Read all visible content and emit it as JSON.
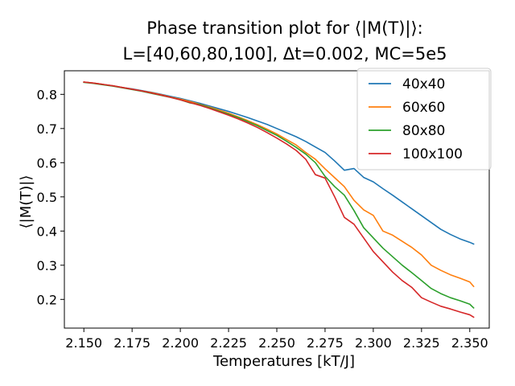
{
  "chart_data": {
    "type": "line",
    "title_line1": "Phase transition plot for ⟨|M(T)|⟩:",
    "title_line2": "L=[40,60,80,100], Δt=0.002, MC=5e5",
    "xlabel": "Temperatures [kT/J]",
    "ylabel": "⟨|M(T)|⟩",
    "xlim": [
      2.1399,
      2.3601
    ],
    "ylim": [
      0.116,
      0.869
    ],
    "xticks": [
      2.15,
      2.175,
      2.2,
      2.225,
      2.25,
      2.275,
      2.3,
      2.325,
      2.35
    ],
    "xtick_labels": [
      "2.150",
      "2.175",
      "2.200",
      "2.225",
      "2.250",
      "2.275",
      "2.300",
      "2.325",
      "2.350"
    ],
    "yticks": [
      0.2,
      0.3,
      0.4,
      0.5,
      0.6,
      0.7,
      0.8
    ],
    "ytick_labels": [
      "0.2",
      "0.3",
      "0.4",
      "0.5",
      "0.6",
      "0.7",
      "0.8"
    ],
    "grid": false,
    "legend_position": "top-right",
    "series": [
      {
        "name": "40x40",
        "color": "#1f77b4",
        "points": [
          [
            2.15,
            0.836
          ],
          [
            2.155,
            0.833
          ],
          [
            2.16,
            0.829
          ],
          [
            2.165,
            0.825
          ],
          [
            2.17,
            0.82
          ],
          [
            2.175,
            0.816
          ],
          [
            2.18,
            0.811
          ],
          [
            2.185,
            0.806
          ],
          [
            2.19,
            0.8
          ],
          [
            2.195,
            0.794
          ],
          [
            2.2,
            0.788
          ],
          [
            2.205,
            0.781
          ],
          [
            2.21,
            0.774
          ],
          [
            2.215,
            0.766
          ],
          [
            2.22,
            0.758
          ],
          [
            2.225,
            0.75
          ],
          [
            2.23,
            0.741
          ],
          [
            2.235,
            0.732
          ],
          [
            2.24,
            0.722
          ],
          [
            2.245,
            0.712
          ],
          [
            2.25,
            0.7
          ],
          [
            2.255,
            0.688
          ],
          [
            2.26,
            0.676
          ],
          [
            2.265,
            0.662
          ],
          [
            2.27,
            0.646
          ],
          [
            2.275,
            0.63
          ],
          [
            2.28,
            0.605
          ],
          [
            2.285,
            0.578
          ],
          [
            2.29,
            0.583
          ],
          [
            2.295,
            0.557
          ],
          [
            2.3,
            0.544
          ],
          [
            2.305,
            0.524
          ],
          [
            2.31,
            0.505
          ],
          [
            2.315,
            0.485
          ],
          [
            2.32,
            0.465
          ],
          [
            2.325,
            0.445
          ],
          [
            2.33,
            0.425
          ],
          [
            2.335,
            0.405
          ],
          [
            2.34,
            0.39
          ],
          [
            2.345,
            0.377
          ],
          [
            2.35,
            0.367
          ],
          [
            2.352,
            0.362
          ]
        ]
      },
      {
        "name": "60x60",
        "color": "#ff7f0e",
        "points": [
          [
            2.15,
            0.836
          ],
          [
            2.155,
            0.833
          ],
          [
            2.16,
            0.829
          ],
          [
            2.165,
            0.825
          ],
          [
            2.17,
            0.82
          ],
          [
            2.175,
            0.815
          ],
          [
            2.18,
            0.81
          ],
          [
            2.185,
            0.805
          ],
          [
            2.19,
            0.799
          ],
          [
            2.195,
            0.792
          ],
          [
            2.2,
            0.786
          ],
          [
            2.205,
            0.779
          ],
          [
            2.21,
            0.771
          ],
          [
            2.215,
            0.763
          ],
          [
            2.22,
            0.754
          ],
          [
            2.225,
            0.745
          ],
          [
            2.23,
            0.734
          ],
          [
            2.235,
            0.723
          ],
          [
            2.24,
            0.711
          ],
          [
            2.245,
            0.698
          ],
          [
            2.25,
            0.684
          ],
          [
            2.255,
            0.668
          ],
          [
            2.26,
            0.652
          ],
          [
            2.265,
            0.63
          ],
          [
            2.27,
            0.61
          ],
          [
            2.275,
            0.582
          ],
          [
            2.28,
            0.556
          ],
          [
            2.285,
            0.53
          ],
          [
            2.29,
            0.49
          ],
          [
            2.295,
            0.462
          ],
          [
            2.3,
            0.446
          ],
          [
            2.305,
            0.4
          ],
          [
            2.31,
            0.388
          ],
          [
            2.315,
            0.37
          ],
          [
            2.32,
            0.352
          ],
          [
            2.325,
            0.33
          ],
          [
            2.33,
            0.3
          ],
          [
            2.335,
            0.285
          ],
          [
            2.34,
            0.272
          ],
          [
            2.345,
            0.262
          ],
          [
            2.35,
            0.251
          ],
          [
            2.352,
            0.238
          ]
        ]
      },
      {
        "name": "80x80",
        "color": "#2ca02c",
        "points": [
          [
            2.15,
            0.835
          ],
          [
            2.155,
            0.832
          ],
          [
            2.16,
            0.828
          ],
          [
            2.165,
            0.824
          ],
          [
            2.17,
            0.819
          ],
          [
            2.175,
            0.814
          ],
          [
            2.18,
            0.809
          ],
          [
            2.185,
            0.803
          ],
          [
            2.19,
            0.797
          ],
          [
            2.195,
            0.791
          ],
          [
            2.2,
            0.784
          ],
          [
            2.205,
            0.775
          ],
          [
            2.21,
            0.77
          ],
          [
            2.215,
            0.761
          ],
          [
            2.22,
            0.751
          ],
          [
            2.225,
            0.742
          ],
          [
            2.23,
            0.732
          ],
          [
            2.235,
            0.72
          ],
          [
            2.24,
            0.708
          ],
          [
            2.245,
            0.694
          ],
          [
            2.25,
            0.68
          ],
          [
            2.255,
            0.663
          ],
          [
            2.26,
            0.645
          ],
          [
            2.265,
            0.625
          ],
          [
            2.27,
            0.6
          ],
          [
            2.275,
            0.56
          ],
          [
            2.28,
            0.53
          ],
          [
            2.285,
            0.505
          ],
          [
            2.29,
            0.46
          ],
          [
            2.295,
            0.41
          ],
          [
            2.3,
            0.38
          ],
          [
            2.305,
            0.35
          ],
          [
            2.31,
            0.325
          ],
          [
            2.315,
            0.3
          ],
          [
            2.32,
            0.278
          ],
          [
            2.325,
            0.255
          ],
          [
            2.33,
            0.232
          ],
          [
            2.335,
            0.217
          ],
          [
            2.34,
            0.205
          ],
          [
            2.345,
            0.196
          ],
          [
            2.35,
            0.186
          ],
          [
            2.352,
            0.175
          ]
        ]
      },
      {
        "name": "100x100",
        "color": "#d62728",
        "points": [
          [
            2.15,
            0.836
          ],
          [
            2.155,
            0.833
          ],
          [
            2.16,
            0.829
          ],
          [
            2.165,
            0.825
          ],
          [
            2.17,
            0.82
          ],
          [
            2.175,
            0.815
          ],
          [
            2.18,
            0.81
          ],
          [
            2.185,
            0.804
          ],
          [
            2.19,
            0.798
          ],
          [
            2.195,
            0.791
          ],
          [
            2.2,
            0.784
          ],
          [
            2.205,
            0.776
          ],
          [
            2.21,
            0.768
          ],
          [
            2.215,
            0.759
          ],
          [
            2.22,
            0.749
          ],
          [
            2.225,
            0.739
          ],
          [
            2.23,
            0.728
          ],
          [
            2.235,
            0.716
          ],
          [
            2.24,
            0.703
          ],
          [
            2.245,
            0.688
          ],
          [
            2.25,
            0.672
          ],
          [
            2.255,
            0.655
          ],
          [
            2.26,
            0.636
          ],
          [
            2.265,
            0.61
          ],
          [
            2.27,
            0.565
          ],
          [
            2.275,
            0.555
          ],
          [
            2.28,
            0.5
          ],
          [
            2.285,
            0.44
          ],
          [
            2.29,
            0.42
          ],
          [
            2.295,
            0.38
          ],
          [
            2.3,
            0.34
          ],
          [
            2.305,
            0.31
          ],
          [
            2.31,
            0.28
          ],
          [
            2.315,
            0.255
          ],
          [
            2.32,
            0.235
          ],
          [
            2.325,
            0.205
          ],
          [
            2.33,
            0.192
          ],
          [
            2.335,
            0.18
          ],
          [
            2.34,
            0.172
          ],
          [
            2.345,
            0.163
          ],
          [
            2.35,
            0.155
          ],
          [
            2.352,
            0.148
          ]
        ]
      }
    ]
  }
}
